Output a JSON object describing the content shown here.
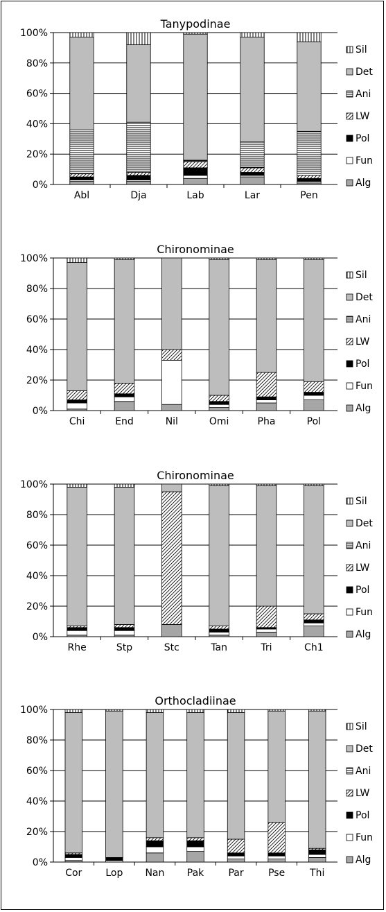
{
  "chart_data": [
    {
      "type": "bar",
      "stacked": true,
      "title": "Tanypodinae",
      "categories": [
        "Abl",
        "Dja",
        "Lab",
        "Lar",
        "Pen"
      ],
      "yticks": [
        "0%",
        "20%",
        "40%",
        "60%",
        "80%",
        "100%"
      ],
      "ylim": [
        0,
        100
      ],
      "grid": true,
      "legend_position": "right",
      "series": [
        {
          "name": "Alg",
          "values": [
            2,
            2,
            4,
            5,
            1
          ]
        },
        {
          "name": "Fun",
          "values": [
            1,
            1,
            2,
            1,
            1
          ]
        },
        {
          "name": "Pol",
          "values": [
            2,
            3,
            5,
            2,
            2
          ]
        },
        {
          "name": "LW",
          "values": [
            2,
            2,
            4,
            3,
            2
          ]
        },
        {
          "name": "Ani",
          "values": [
            29,
            33,
            1,
            17,
            29
          ]
        },
        {
          "name": "Det",
          "values": [
            61,
            51,
            83,
            69,
            59
          ]
        },
        {
          "name": "Sil",
          "values": [
            3,
            8,
            1,
            3,
            6
          ]
        }
      ]
    },
    {
      "type": "bar",
      "stacked": true,
      "title": "Chironominae",
      "categories": [
        "Chi",
        "End",
        "Nil",
        "Omi",
        "Pha",
        "Pol"
      ],
      "yticks": [
        "0%",
        "20%",
        "40%",
        "60%",
        "80%",
        "100%"
      ],
      "ylim": [
        0,
        100
      ],
      "grid": true,
      "legend_position": "right",
      "series": [
        {
          "name": "Alg",
          "values": [
            1,
            6,
            4,
            2,
            5,
            7
          ]
        },
        {
          "name": "Fun",
          "values": [
            4,
            3,
            29,
            2,
            2,
            3
          ]
        },
        {
          "name": "Pol",
          "values": [
            2,
            2,
            0,
            2,
            2,
            2
          ]
        },
        {
          "name": "LW",
          "values": [
            6,
            7,
            7,
            4,
            16,
            7
          ]
        },
        {
          "name": "Ani",
          "values": [
            0,
            0,
            0,
            0,
            0,
            0
          ]
        },
        {
          "name": "Det",
          "values": [
            84,
            81,
            60,
            89,
            74,
            80
          ]
        },
        {
          "name": "Sil",
          "values": [
            3,
            1,
            0,
            1,
            1,
            1
          ]
        }
      ]
    },
    {
      "type": "bar",
      "stacked": true,
      "title": "Chironominae",
      "categories": [
        "Rhe",
        "Stp",
        "Stc",
        "Tan",
        "Tri",
        "Ch1"
      ],
      "yticks": [
        "0%",
        "20%",
        "40%",
        "60%",
        "80%",
        "100%"
      ],
      "ylim": [
        0,
        100
      ],
      "grid": true,
      "legend_position": "right",
      "series": [
        {
          "name": "Alg",
          "values": [
            1,
            1,
            8,
            1,
            3,
            7
          ]
        },
        {
          "name": "Fun",
          "values": [
            3,
            3,
            0,
            2,
            2,
            2
          ]
        },
        {
          "name": "Pol",
          "values": [
            2,
            2,
            0,
            2,
            1,
            2
          ]
        },
        {
          "name": "LW",
          "values": [
            1,
            2,
            87,
            2,
            14,
            4
          ]
        },
        {
          "name": "Ani",
          "values": [
            0,
            0,
            0,
            0,
            0,
            0
          ]
        },
        {
          "name": "Det",
          "values": [
            91,
            90,
            5,
            92,
            79,
            84
          ]
        },
        {
          "name": "Sil",
          "values": [
            2,
            2,
            0,
            1,
            1,
            1
          ]
        }
      ]
    },
    {
      "type": "bar",
      "stacked": true,
      "title": "Orthocladiinae",
      "categories": [
        "Cor",
        "Lop",
        "Nan",
        "Pak",
        "Par",
        "Pse",
        "Thi"
      ],
      "yticks": [
        "0%",
        "20%",
        "40%",
        "60%",
        "80%",
        "100%"
      ],
      "ylim": [
        0,
        100
      ],
      "grid": true,
      "legend_position": "right",
      "series": [
        {
          "name": "Alg",
          "values": [
            1,
            0,
            6,
            7,
            2,
            2,
            3
          ]
        },
        {
          "name": "Fun",
          "values": [
            2,
            1,
            4,
            3,
            2,
            2,
            2
          ]
        },
        {
          "name": "Pol",
          "values": [
            2,
            2,
            4,
            4,
            2,
            2,
            3
          ]
        },
        {
          "name": "LW",
          "values": [
            1,
            0,
            2,
            2,
            9,
            20,
            1
          ]
        },
        {
          "name": "Ani",
          "values": [
            0,
            0,
            0,
            0,
            0,
            0,
            0
          ]
        },
        {
          "name": "Det",
          "values": [
            92,
            96,
            82,
            82,
            83,
            73,
            90
          ]
        },
        {
          "name": "Sil",
          "values": [
            2,
            1,
            2,
            2,
            2,
            1,
            1
          ]
        }
      ]
    }
  ]
}
